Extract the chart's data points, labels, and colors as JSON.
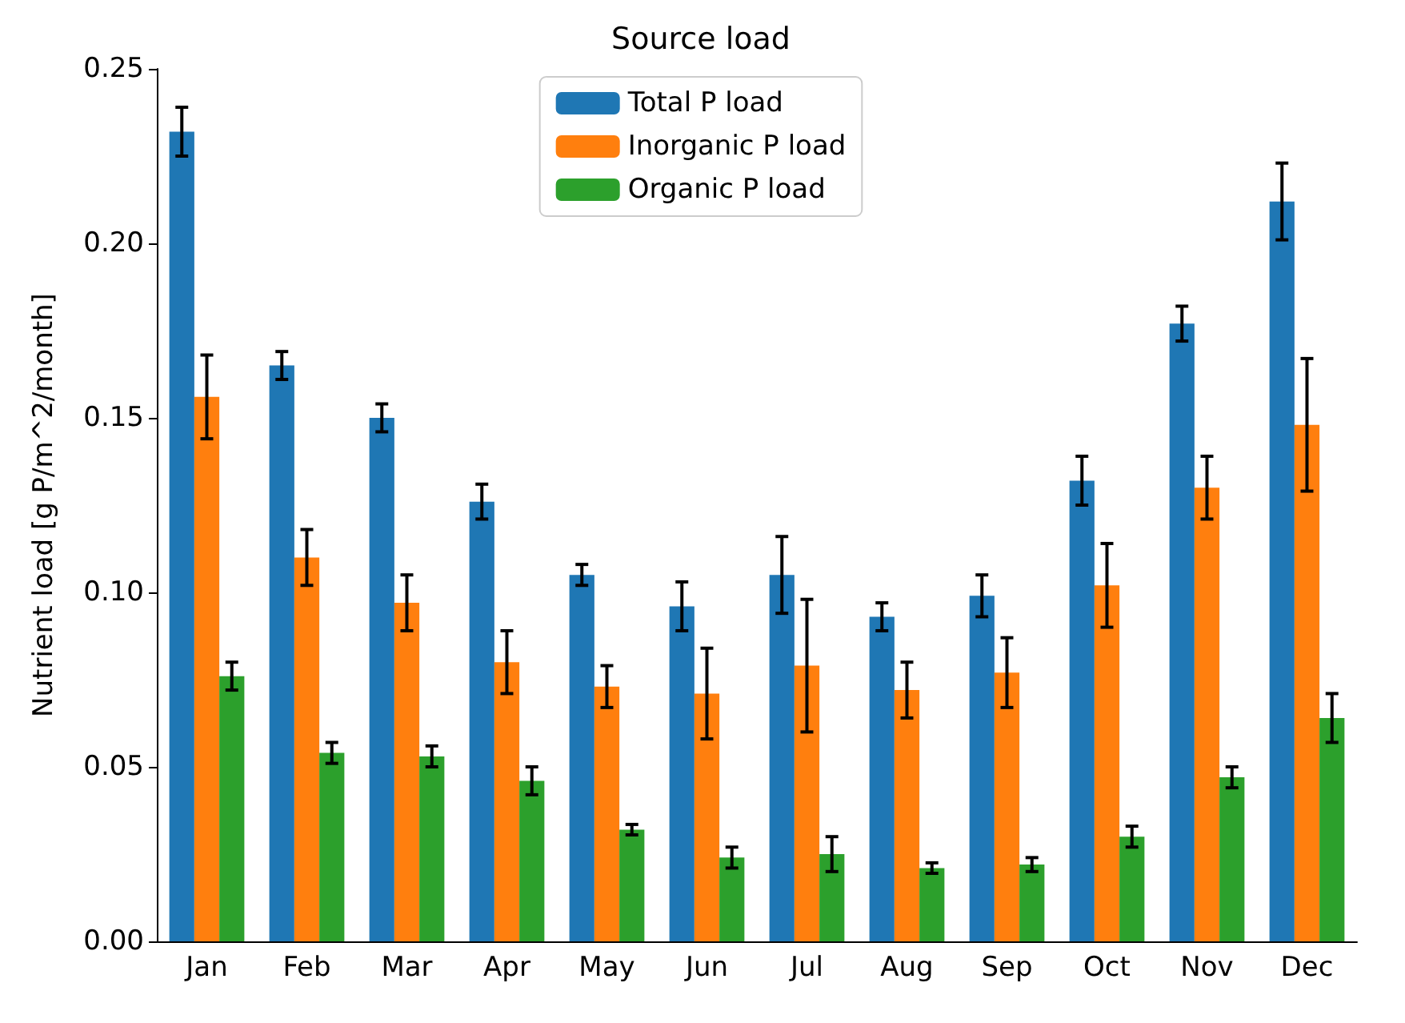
{
  "chart_data": {
    "type": "bar",
    "title": "Source load",
    "ylabel": "Nutrient load [g P/m^2/month]",
    "categories": [
      "Jan",
      "Feb",
      "Mar",
      "Apr",
      "May",
      "Jun",
      "Jul",
      "Aug",
      "Sep",
      "Oct",
      "Nov",
      "Dec"
    ],
    "series": [
      {
        "name": "Total P load",
        "color": "#1f77b4",
        "values": [
          0.232,
          0.165,
          0.15,
          0.126,
          0.105,
          0.096,
          0.105,
          0.093,
          0.099,
          0.132,
          0.177,
          0.212
        ],
        "errors": [
          0.007,
          0.004,
          0.004,
          0.005,
          0.003,
          0.007,
          0.011,
          0.004,
          0.006,
          0.007,
          0.005,
          0.011
        ]
      },
      {
        "name": "Inorganic P load",
        "color": "#ff7f0e",
        "values": [
          0.156,
          0.11,
          0.097,
          0.08,
          0.073,
          0.071,
          0.079,
          0.072,
          0.077,
          0.102,
          0.13,
          0.148
        ],
        "errors": [
          0.012,
          0.008,
          0.008,
          0.009,
          0.006,
          0.013,
          0.019,
          0.008,
          0.01,
          0.012,
          0.009,
          0.019
        ]
      },
      {
        "name": "Organic P load",
        "color": "#2ca02c",
        "values": [
          0.076,
          0.054,
          0.053,
          0.046,
          0.032,
          0.024,
          0.025,
          0.021,
          0.022,
          0.03,
          0.047,
          0.064
        ],
        "errors": [
          0.004,
          0.003,
          0.003,
          0.004,
          0.0015,
          0.003,
          0.005,
          0.0015,
          0.002,
          0.003,
          0.003,
          0.007
        ]
      }
    ],
    "ylim": [
      0,
      0.25
    ],
    "yticks": [
      {
        "value": 0,
        "label": "0.00"
      },
      {
        "value": 0.05,
        "label": "0.05"
      },
      {
        "value": 0.1,
        "label": "0.10"
      },
      {
        "value": 0.15,
        "label": "0.15"
      },
      {
        "value": 0.2,
        "label": "0.20"
      },
      {
        "value": 0.25,
        "label": "0.25"
      }
    ],
    "legend": "top",
    "grid": false
  }
}
